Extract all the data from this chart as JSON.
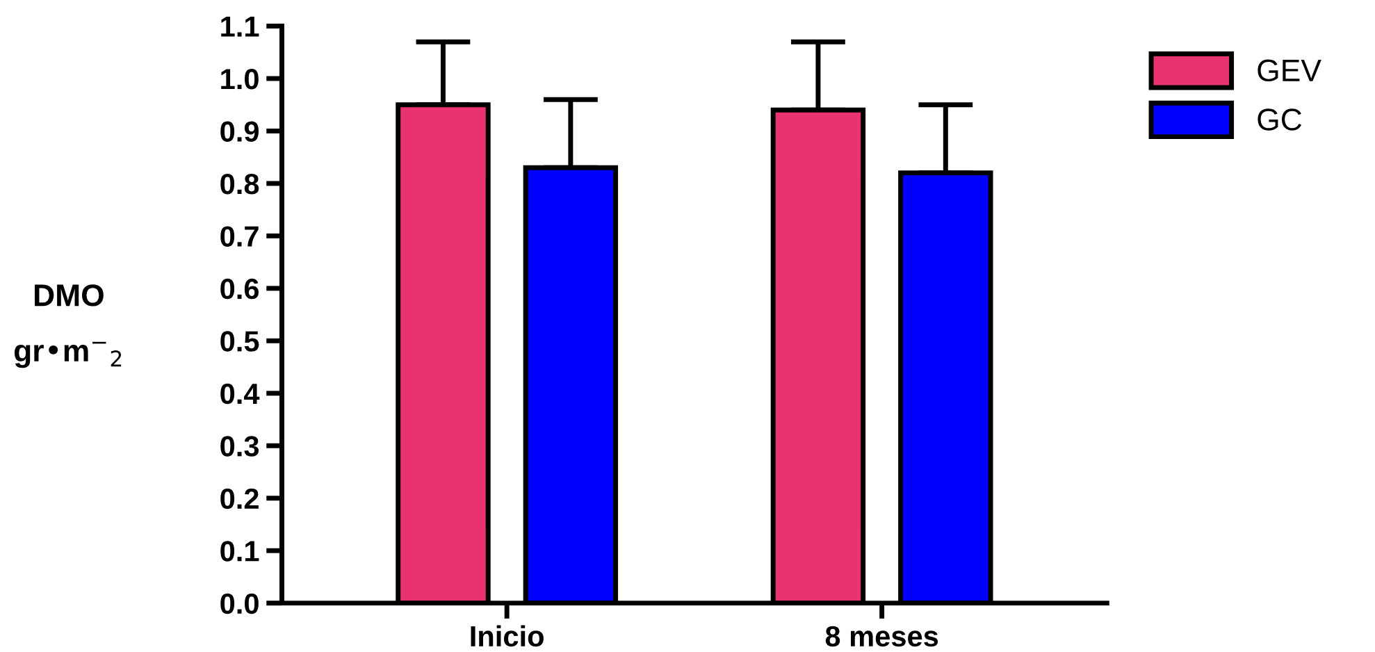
{
  "chart_data": {
    "type": "bar",
    "ylabel": "DMO\ngr•m$^{−}$$_{2}$",
    "categories": [
      "Inicio",
      "8 meses"
    ],
    "series": [
      {
        "name": "GEV",
        "color": "#e8336e",
        "values": [
          0.95,
          0.94
        ],
        "errors": [
          [
            0.95,
            1.07
          ],
          [
            0.94,
            1.07
          ]
        ]
      },
      {
        "name": "GC",
        "color": "#0000ff",
        "values": [
          0.83,
          0.82
        ],
        "errors": [
          [
            0.83,
            0.96
          ],
          [
            0.82,
            0.95
          ]
        ]
      }
    ],
    "ylim": [
      0,
      1.1
    ],
    "yticks": [
      {
        "value": 0,
        "label": "0.0"
      },
      {
        "value": 0.1,
        "label": "0.1"
      },
      {
        "value": 0.2,
        "label": "0.2"
      },
      {
        "value": 0.3,
        "label": "0.3"
      },
      {
        "value": 0.4,
        "label": "0.4"
      },
      {
        "value": 0.5,
        "label": "0.5"
      },
      {
        "value": 0.6,
        "label": "0.6"
      },
      {
        "value": 0.7,
        "label": "0.7"
      },
      {
        "value": 0.8,
        "label": "0.8"
      },
      {
        "value": 0.9,
        "label": "0.9"
      },
      {
        "value": 1.0,
        "label": "1.0"
      },
      {
        "value": 1.1,
        "label": "1.1"
      }
    ],
    "grid": false,
    "legend": "top right"
  }
}
